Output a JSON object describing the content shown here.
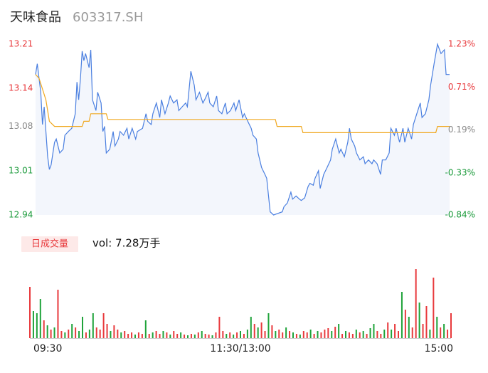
{
  "chart_data": [
    {
      "type": "line",
      "title": "天味食品",
      "subtitle": "603317.SH",
      "xlim": [
        0,
        240
      ],
      "ylim": [
        12.94,
        13.21
      ],
      "yticks": [
        12.94,
        13.01,
        13.08,
        13.14,
        13.21
      ],
      "ytick_colors": [
        "#1a9a3a",
        "#1a9a3a",
        "#888888",
        "#e8393c",
        "#e8393c"
      ],
      "y2lim": [
        -0.84,
        1.23
      ],
      "y2ticks": [
        {
          "value": -0.84,
          "label": "-0.84%"
        },
        {
          "value": -0.33,
          "label": "-0.33%"
        },
        {
          "value": 0.19,
          "label": "0.19%"
        },
        {
          "value": 0.71,
          "label": "0.71%"
        },
        {
          "value": 1.23,
          "label": "1.23%"
        }
      ],
      "area": true,
      "area_color": "#f3f6fc",
      "series": [
        {
          "color": "#4a7fe0",
          "x": [
            0,
            1,
            3,
            4,
            5,
            7,
            8,
            9,
            11,
            12,
            14,
            16,
            17,
            19,
            21,
            23,
            24,
            25,
            26,
            27,
            28,
            29,
            31,
            32,
            33,
            35,
            36,
            38,
            39,
            40,
            41,
            43,
            45,
            46,
            48,
            49,
            51,
            53,
            54,
            56,
            58,
            59,
            62,
            64,
            65,
            67,
            68,
            70,
            72,
            73,
            75,
            77,
            78,
            80,
            82,
            83,
            85,
            87,
            88,
            90,
            92,
            93,
            95,
            97,
            98,
            100,
            101,
            103,
            105,
            106,
            108,
            110,
            111,
            113,
            115,
            116,
            118,
            120,
            121,
            123,
            125,
            126,
            128,
            129,
            131,
            133,
            134,
            136,
            138,
            140,
            143,
            144,
            146,
            148,
            149,
            151,
            153,
            154,
            156,
            158,
            159,
            161,
            162,
            164,
            165,
            167,
            169,
            171,
            172,
            174,
            176,
            177,
            179,
            181,
            182,
            183,
            185,
            186,
            188,
            190,
            191,
            193,
            195,
            196,
            198,
            200,
            201,
            203,
            205,
            206,
            208,
            209,
            211,
            213,
            214,
            216,
            218,
            219,
            221,
            223,
            224,
            226,
            228,
            229,
            231,
            233,
            235,
            237,
            238,
            240
          ],
          "values": [
            13.162,
            13.179,
            13.134,
            13.083,
            13.111,
            13.032,
            13.012,
            13.019,
            13.055,
            13.06,
            13.038,
            13.044,
            13.066,
            13.072,
            13.077,
            13.1,
            13.15,
            13.122,
            13.156,
            13.199,
            13.184,
            13.195,
            13.173,
            13.201,
            13.122,
            13.105,
            13.134,
            13.117,
            13.072,
            13.08,
            13.038,
            13.044,
            13.072,
            13.049,
            13.06,
            13.072,
            13.066,
            13.077,
            13.06,
            13.077,
            13.06,
            13.072,
            13.077,
            13.1,
            13.088,
            13.083,
            13.1,
            13.117,
            13.094,
            13.122,
            13.1,
            13.117,
            13.128,
            13.117,
            13.122,
            13.105,
            13.111,
            13.117,
            13.111,
            13.167,
            13.145,
            13.122,
            13.134,
            13.117,
            13.122,
            13.134,
            13.117,
            13.111,
            13.128,
            13.105,
            13.1,
            13.117,
            13.1,
            13.105,
            13.117,
            13.105,
            13.122,
            13.094,
            13.1,
            13.088,
            13.077,
            13.066,
            13.06,
            13.038,
            13.015,
            13.004,
            12.998,
            12.945,
            12.94,
            12.942,
            12.945,
            12.953,
            12.959,
            12.976,
            12.965,
            12.97,
            12.965,
            12.963,
            12.967,
            12.985,
            12.99,
            12.987,
            12.998,
            13.01,
            12.982,
            13.004,
            13.015,
            13.027,
            13.044,
            13.06,
            13.038,
            13.044,
            13.032,
            13.055,
            13.077,
            13.06,
            13.049,
            13.038,
            13.027,
            13.032,
            13.021,
            13.027,
            13.021,
            13.027,
            13.021,
            13.004,
            13.027,
            13.027,
            13.038,
            13.077,
            13.066,
            13.077,
            13.055,
            13.077,
            13.055,
            13.077,
            13.06,
            13.083,
            13.1,
            13.117,
            13.094,
            13.1,
            13.122,
            13.145,
            13.179,
            13.21,
            13.195,
            13.201,
            13.162,
            13.162
          ]
        },
        {
          "color": "#f0a820",
          "x": [
            0,
            2,
            4,
            6,
            8,
            11,
            27,
            28,
            31,
            32,
            41,
            42,
            139,
            140,
            154,
            155,
            232,
            233,
            240
          ],
          "values": [
            13.162,
            13.156,
            13.139,
            13.122,
            13.088,
            13.08,
            13.08,
            13.088,
            13.088,
            13.1,
            13.1,
            13.091,
            13.091,
            13.08,
            13.08,
            13.07,
            13.07,
            13.08,
            13.08
          ]
        }
      ]
    },
    {
      "type": "bar",
      "label_button": "日成交量",
      "summary": "vol: 7.28万手",
      "xlim": [
        0,
        240
      ],
      "ylim": [
        0,
        100
      ],
      "xticks": [
        {
          "value": 0,
          "label": "09:30"
        },
        {
          "value": 120,
          "label": "11:30/13:00"
        },
        {
          "value": 240,
          "label": "15:00"
        }
      ],
      "palette": {
        "up": "#e8393c",
        "down": "#1fa33a"
      },
      "x": [
        0,
        2,
        4,
        6,
        8,
        10,
        12,
        14,
        16,
        18,
        20,
        22,
        24,
        26,
        28,
        30,
        32,
        34,
        36,
        38,
        40,
        42,
        44,
        46,
        48,
        50,
        52,
        54,
        56,
        58,
        60,
        62,
        64,
        66,
        68,
        70,
        72,
        74,
        76,
        78,
        80,
        82,
        84,
        86,
        88,
        90,
        92,
        94,
        96,
        98,
        100,
        102,
        104,
        106,
        108,
        110,
        112,
        114,
        116,
        118,
        120,
        122,
        124,
        126,
        128,
        130,
        132,
        134,
        136,
        138,
        140,
        142,
        144,
        146,
        148,
        150,
        152,
        154,
        156,
        158,
        160,
        162,
        164,
        166,
        168,
        170,
        172,
        174,
        176,
        178,
        180,
        182,
        184,
        186,
        188,
        190,
        192,
        194,
        196,
        198,
        200,
        202,
        204,
        206,
        208,
        210,
        212,
        214,
        216,
        218,
        220,
        222,
        224,
        226,
        228,
        230,
        232,
        234,
        236,
        238,
        240
      ],
      "values": [
        72,
        38,
        35,
        55,
        25,
        18,
        12,
        15,
        68,
        10,
        8,
        12,
        20,
        15,
        10,
        30,
        8,
        12,
        35,
        15,
        12,
        35,
        20,
        10,
        18,
        12,
        8,
        10,
        6,
        8,
        5,
        8,
        6,
        25,
        6,
        8,
        10,
        6,
        10,
        8,
        5,
        10,
        6,
        8,
        5,
        4,
        6,
        5,
        8,
        10,
        6,
        5,
        4,
        8,
        30,
        10,
        6,
        8,
        5,
        8,
        10,
        6,
        12,
        30,
        20,
        15,
        22,
        10,
        35,
        18,
        10,
        12,
        8,
        15,
        10,
        8,
        6,
        5,
        10,
        8,
        12,
        6,
        10,
        8,
        12,
        14,
        10,
        16,
        20,
        6,
        10,
        8,
        6,
        12,
        8,
        10,
        6,
        14,
        20,
        10,
        6,
        12,
        22,
        12,
        20,
        10,
        65,
        40,
        30,
        15,
        97,
        50,
        20,
        45,
        12,
        85,
        30,
        15,
        20,
        12,
        35
      ],
      "direction": [
        "up",
        "down",
        "down",
        "down",
        "up",
        "down",
        "up",
        "down",
        "up",
        "up",
        "down",
        "up",
        "down",
        "up",
        "down",
        "down",
        "up",
        "down",
        "down",
        "up",
        "up",
        "up",
        "up",
        "down",
        "up",
        "up",
        "down",
        "up",
        "up",
        "up",
        "down",
        "up",
        "up",
        "down",
        "up",
        "down",
        "up",
        "up",
        "down",
        "up",
        "down",
        "up",
        "up",
        "down",
        "up",
        "down",
        "up",
        "down",
        "up",
        "down",
        "up",
        "up",
        "down",
        "up",
        "up",
        "up",
        "down",
        "up",
        "down",
        "up",
        "down",
        "up",
        "down",
        "down",
        "up",
        "down",
        "up",
        "up",
        "down",
        "up",
        "down",
        "up",
        "up",
        "down",
        "up",
        "down",
        "up",
        "down",
        "up",
        "up",
        "down",
        "up",
        "down",
        "up",
        "up",
        "up",
        "down",
        "up",
        "down",
        "up",
        "down",
        "up",
        "up",
        "down",
        "up",
        "down",
        "up",
        "down",
        "down",
        "up",
        "up",
        "down",
        "up",
        "down",
        "up",
        "up",
        "down",
        "up",
        "down",
        "up",
        "up",
        "down",
        "up",
        "up",
        "down",
        "up",
        "down",
        "up",
        "down",
        "up",
        "up"
      ]
    }
  ]
}
